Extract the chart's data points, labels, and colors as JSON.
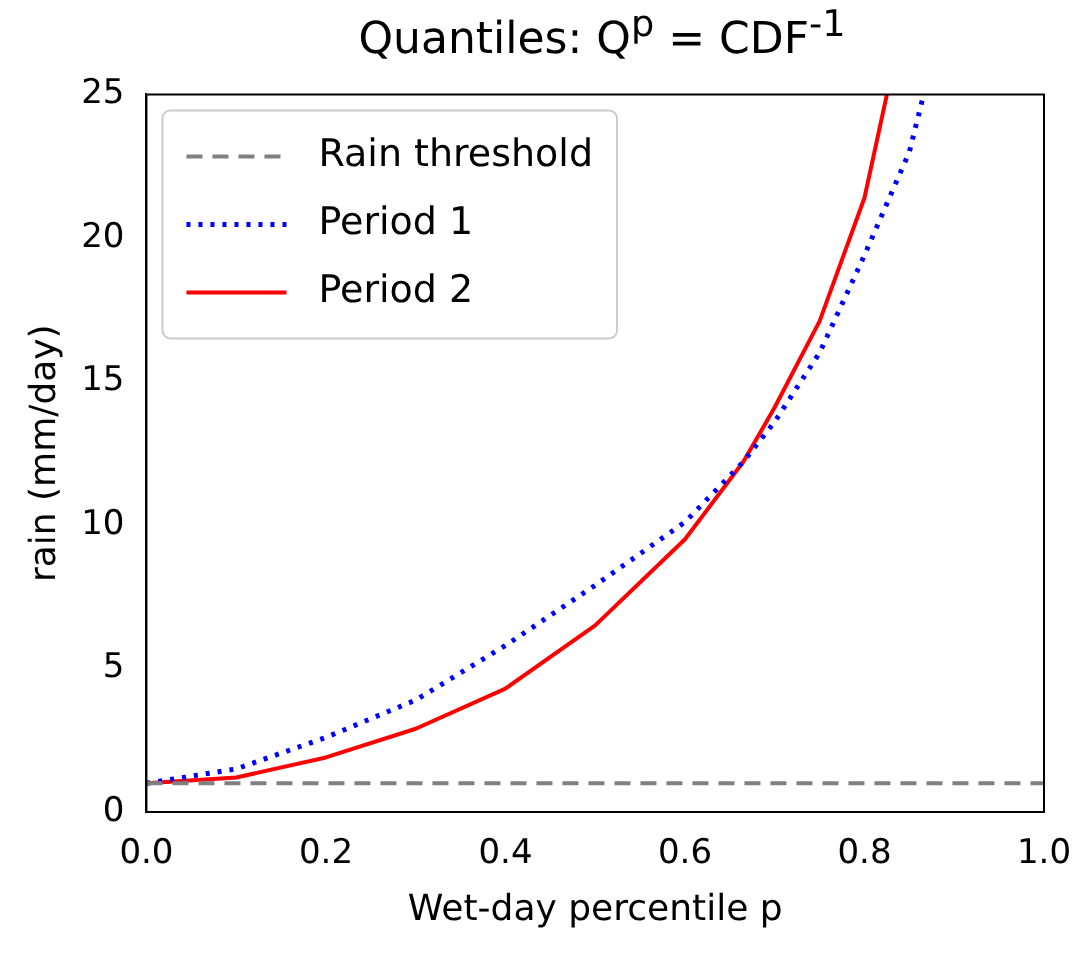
{
  "chart_data": {
    "type": "line",
    "title": "Quantiles: Q$^{p}$ = CDF$^{-1}$",
    "xlabel": "Wet-day percentile p",
    "ylabel": "rain (mm/day)",
    "xlim": [
      0,
      1
    ],
    "xticks": [
      {
        "value": 0,
        "label": "0.0"
      },
      {
        "value": 0.2,
        "label": "0.2"
      },
      {
        "value": 0.4,
        "label": "0.4"
      },
      {
        "value": 0.6,
        "label": "0.6"
      },
      {
        "value": 0.8,
        "label": "0.8"
      },
      {
        "value": 1,
        "label": "1.0"
      }
    ],
    "ylim": [
      0,
      25
    ],
    "yticks": [
      0,
      5,
      10,
      15,
      20,
      25
    ],
    "grid": false,
    "legend": "top left",
    "marker": "none",
    "ref_lines": [
      {
        "axis": "y",
        "value": 1,
        "label": "Rain threshold",
        "color": "#808080",
        "line_style": "dashed"
      }
    ],
    "series": [
      {
        "name": "Period 1",
        "color": "#0000ff",
        "line_style": "dotted",
        "x": [
          0,
          0.1,
          0.2,
          0.3,
          0.4,
          0.5,
          0.6,
          0.665,
          0.7,
          0.75,
          0.8,
          0.85,
          0.866
        ],
        "values": [
          1,
          1.5,
          2.6,
          3.9,
          5.8,
          7.9,
          10.1,
          12.2,
          13.6,
          16,
          19.4,
          23,
          25
        ]
      },
      {
        "name": "Period 2",
        "color": "#ff0000",
        "line_style": "solid",
        "x": [
          0,
          0.1,
          0.2,
          0.3,
          0.4,
          0.5,
          0.6,
          0.665,
          0.7,
          0.75,
          0.8,
          0.825
        ],
        "values": [
          1,
          1.2,
          1.9,
          2.9,
          4.3,
          6.5,
          9.5,
          12.2,
          14.1,
          17.1,
          21.4,
          25
        ]
      }
    ]
  }
}
